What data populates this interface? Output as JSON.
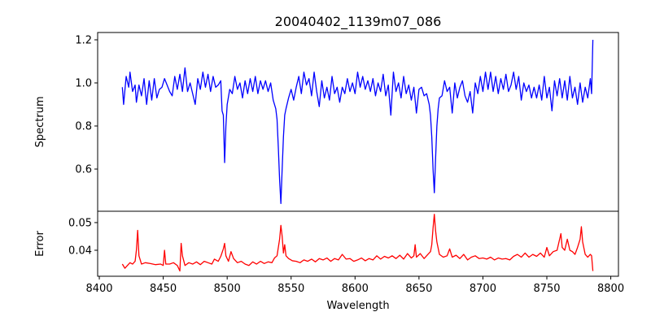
{
  "chart_data": [
    {
      "type": "line",
      "title": "20040402_1139m07_086",
      "xlabel": "",
      "ylabel": "Spectrum",
      "xlim": [
        8398.7,
        8806
      ],
      "ylim": [
        0.404,
        1.234
      ],
      "yticks": [
        "0.6",
        "0.8",
        "1.0",
        "1.2"
      ],
      "yticks_values": [
        0.6,
        0.8,
        1.0,
        1.2
      ],
      "grid": false,
      "color": "#0000ff",
      "points": [
        [
          8418,
          0.98
        ],
        [
          8419,
          0.9
        ],
        [
          8421,
          1.03
        ],
        [
          8423,
          0.98
        ],
        [
          8424,
          1.05
        ],
        [
          8426,
          0.96
        ],
        [
          8428,
          0.99
        ],
        [
          8429,
          0.91
        ],
        [
          8431,
          0.99
        ],
        [
          8433,
          0.94
        ],
        [
          8435,
          1.02
        ],
        [
          8437,
          0.9
        ],
        [
          8439,
          1.01
        ],
        [
          8441,
          0.92
        ],
        [
          8443,
          1.02
        ],
        [
          8445,
          0.93
        ],
        [
          8447,
          0.97
        ],
        [
          8449,
          0.98
        ],
        [
          8451,
          1.02
        ],
        [
          8453,
          0.99
        ],
        [
          8455,
          0.96
        ],
        [
          8457,
          0.94
        ],
        [
          8459,
          1.03
        ],
        [
          8461,
          0.97
        ],
        [
          8463,
          1.04
        ],
        [
          8465,
          0.96
        ],
        [
          8467,
          1.07
        ],
        [
          8469,
          0.96
        ],
        [
          8471,
          1.0
        ],
        [
          8473,
          0.95
        ],
        [
          8475,
          0.9
        ],
        [
          8477,
          1.02
        ],
        [
          8479,
          0.97
        ],
        [
          8481,
          1.05
        ],
        [
          8483,
          0.98
        ],
        [
          8485,
          1.04
        ],
        [
          8487,
          0.96
        ],
        [
          8489,
          1.03
        ],
        [
          8491,
          0.98
        ],
        [
          8493,
          0.99
        ],
        [
          8495,
          1.01
        ],
        [
          8496,
          0.87
        ],
        [
          8497,
          0.85
        ],
        [
          8498,
          0.63
        ],
        [
          8499,
          0.8
        ],
        [
          8500,
          0.9
        ],
        [
          8502,
          0.97
        ],
        [
          8504,
          0.95
        ],
        [
          8506,
          1.03
        ],
        [
          8508,
          0.97
        ],
        [
          8510,
          1.0
        ],
        [
          8512,
          0.93
        ],
        [
          8514,
          1.01
        ],
        [
          8516,
          0.95
        ],
        [
          8518,
          1.02
        ],
        [
          8520,
          0.96
        ],
        [
          8522,
          1.03
        ],
        [
          8524,
          0.95
        ],
        [
          8526,
          1.01
        ],
        [
          8528,
          0.97
        ],
        [
          8530,
          1.01
        ],
        [
          8532,
          0.96
        ],
        [
          8534,
          1.0
        ],
        [
          8536,
          0.92
        ],
        [
          8538,
          0.88
        ],
        [
          8539,
          0.83
        ],
        [
          8540,
          0.7
        ],
        [
          8541,
          0.55
        ],
        [
          8542,
          0.44
        ],
        [
          8543,
          0.6
        ],
        [
          8544,
          0.75
        ],
        [
          8545,
          0.85
        ],
        [
          8546,
          0.88
        ],
        [
          8548,
          0.93
        ],
        [
          8550,
          0.97
        ],
        [
          8552,
          0.92
        ],
        [
          8554,
          0.98
        ],
        [
          8556,
          1.03
        ],
        [
          8558,
          0.95
        ],
        [
          8560,
          1.05
        ],
        [
          8562,
          0.99
        ],
        [
          8564,
          1.02
        ],
        [
          8566,
          0.94
        ],
        [
          8568,
          1.05
        ],
        [
          8570,
          0.96
        ],
        [
          8572,
          0.89
        ],
        [
          8574,
          1.01
        ],
        [
          8576,
          0.93
        ],
        [
          8578,
          0.98
        ],
        [
          8580,
          0.92
        ],
        [
          8582,
          1.03
        ],
        [
          8584,
          0.95
        ],
        [
          8586,
          0.98
        ],
        [
          8588,
          0.91
        ],
        [
          8590,
          0.98
        ],
        [
          8592,
          0.95
        ],
        [
          8594,
          1.02
        ],
        [
          8596,
          0.96
        ],
        [
          8598,
          1.0
        ],
        [
          8600,
          0.95
        ],
        [
          8602,
          1.05
        ],
        [
          8604,
          0.98
        ],
        [
          8606,
          1.03
        ],
        [
          8608,
          0.97
        ],
        [
          8610,
          1.01
        ],
        [
          8612,
          0.96
        ],
        [
          8614,
          1.02
        ],
        [
          8616,
          0.94
        ],
        [
          8618,
          1.0
        ],
        [
          8620,
          0.96
        ],
        [
          8622,
          1.04
        ],
        [
          8624,
          0.94
        ],
        [
          8626,
          0.99
        ],
        [
          8628,
          0.85
        ],
        [
          8630,
          1.05
        ],
        [
          8632,
          0.96
        ],
        [
          8634,
          1.0
        ],
        [
          8636,
          0.93
        ],
        [
          8638,
          1.03
        ],
        [
          8640,
          0.95
        ],
        [
          8642,
          0.99
        ],
        [
          8644,
          0.92
        ],
        [
          8646,
          0.98
        ],
        [
          8648,
          0.86
        ],
        [
          8650,
          0.97
        ],
        [
          8652,
          0.98
        ],
        [
          8654,
          0.94
        ],
        [
          8656,
          0.95
        ],
        [
          8658,
          0.9
        ],
        [
          8659,
          0.85
        ],
        [
          8660,
          0.75
        ],
        [
          8661,
          0.6
        ],
        [
          8662,
          0.49
        ],
        [
          8663,
          0.65
        ],
        [
          8664,
          0.8
        ],
        [
          8665,
          0.88
        ],
        [
          8666,
          0.93
        ],
        [
          8668,
          0.94
        ],
        [
          8670,
          1.01
        ],
        [
          8672,
          0.96
        ],
        [
          8674,
          0.98
        ],
        [
          8676,
          0.86
        ],
        [
          8678,
          1.0
        ],
        [
          8680,
          0.93
        ],
        [
          8682,
          0.98
        ],
        [
          8684,
          1.01
        ],
        [
          8686,
          0.94
        ],
        [
          8688,
          0.91
        ],
        [
          8690,
          0.96
        ],
        [
          8692,
          0.86
        ],
        [
          8694,
          1.0
        ],
        [
          8696,
          0.95
        ],
        [
          8698,
          1.03
        ],
        [
          8700,
          0.96
        ],
        [
          8702,
          1.05
        ],
        [
          8704,
          0.97
        ],
        [
          8706,
          1.05
        ],
        [
          8708,
          0.96
        ],
        [
          8710,
          1.03
        ],
        [
          8712,
          0.95
        ],
        [
          8714,
          1.02
        ],
        [
          8716,
          0.97
        ],
        [
          8718,
          1.04
        ],
        [
          8720,
          0.96
        ],
        [
          8722,
          0.99
        ],
        [
          8724,
          1.05
        ],
        [
          8726,
          0.97
        ],
        [
          8728,
          1.03
        ],
        [
          8730,
          0.92
        ],
        [
          8732,
          1.0
        ],
        [
          8734,
          0.96
        ],
        [
          8736,
          0.99
        ],
        [
          8738,
          0.93
        ],
        [
          8740,
          0.98
        ],
        [
          8742,
          0.93
        ],
        [
          8744,
          0.99
        ],
        [
          8746,
          0.92
        ],
        [
          8748,
          1.03
        ],
        [
          8750,
          0.93
        ],
        [
          8752,
          0.98
        ],
        [
          8754,
          0.87
        ],
        [
          8756,
          1.01
        ],
        [
          8758,
          0.94
        ],
        [
          8760,
          1.02
        ],
        [
          8762,
          0.93
        ],
        [
          8764,
          1.01
        ],
        [
          8766,
          0.92
        ],
        [
          8768,
          1.03
        ],
        [
          8770,
          0.93
        ],
        [
          8772,
          0.98
        ],
        [
          8774,
          0.9
        ],
        [
          8776,
          1.0
        ],
        [
          8778,
          0.91
        ],
        [
          8780,
          0.98
        ],
        [
          8782,
          0.93
        ],
        [
          8784,
          1.02
        ],
        [
          8785,
          0.95
        ],
        [
          8786,
          1.2
        ]
      ]
    },
    {
      "type": "line",
      "title": "",
      "xlabel": "Wavelength",
      "ylabel": "Error",
      "xlim": [
        8398.7,
        8806
      ],
      "ylim": [
        0.0306,
        0.0541
      ],
      "xticks": [
        "8400",
        "8450",
        "8500",
        "8550",
        "8600",
        "8650",
        "8700",
        "8750",
        "8800"
      ],
      "xticks_values": [
        8400,
        8450,
        8500,
        8550,
        8600,
        8650,
        8700,
        8750,
        8800
      ],
      "yticks": [
        "0.04",
        "0.05"
      ],
      "yticks_values": [
        0.04,
        0.05
      ],
      "grid": false,
      "color": "#ff0000",
      "points": [
        [
          8418,
          0.035
        ],
        [
          8420,
          0.0335
        ],
        [
          8422,
          0.0345
        ],
        [
          8424,
          0.0355
        ],
        [
          8426,
          0.035
        ],
        [
          8428,
          0.036
        ],
        [
          8429,
          0.04
        ],
        [
          8430,
          0.0472
        ],
        [
          8431,
          0.038
        ],
        [
          8433,
          0.035
        ],
        [
          8436,
          0.0355
        ],
        [
          8440,
          0.0352
        ],
        [
          8444,
          0.0348
        ],
        [
          8448,
          0.035
        ],
        [
          8450,
          0.0345
        ],
        [
          8451,
          0.04
        ],
        [
          8452,
          0.035
        ],
        [
          8455,
          0.035
        ],
        [
          8458,
          0.0355
        ],
        [
          8461,
          0.0345
        ],
        [
          8463,
          0.0325
        ],
        [
          8464,
          0.0425
        ],
        [
          8465,
          0.038
        ],
        [
          8467,
          0.0345
        ],
        [
          8470,
          0.0355
        ],
        [
          8473,
          0.035
        ],
        [
          8476,
          0.0358
        ],
        [
          8479,
          0.0348
        ],
        [
          8482,
          0.036
        ],
        [
          8485,
          0.0355
        ],
        [
          8488,
          0.035
        ],
        [
          8490,
          0.0368
        ],
        [
          8493,
          0.036
        ],
        [
          8495,
          0.0378
        ],
        [
          8497,
          0.0405
        ],
        [
          8498,
          0.0425
        ],
        [
          8499,
          0.038
        ],
        [
          8501,
          0.036
        ],
        [
          8503,
          0.0395
        ],
        [
          8505,
          0.037
        ],
        [
          8508,
          0.0355
        ],
        [
          8511,
          0.036
        ],
        [
          8514,
          0.035
        ],
        [
          8517,
          0.0345
        ],
        [
          8520,
          0.0358
        ],
        [
          8523,
          0.035
        ],
        [
          8526,
          0.036
        ],
        [
          8529,
          0.0352
        ],
        [
          8532,
          0.0358
        ],
        [
          8535,
          0.0355
        ],
        [
          8537,
          0.0372
        ],
        [
          8539,
          0.038
        ],
        [
          8541,
          0.044
        ],
        [
          8542,
          0.049
        ],
        [
          8543,
          0.045
        ],
        [
          8544,
          0.039
        ],
        [
          8545,
          0.042
        ],
        [
          8546,
          0.038
        ],
        [
          8548,
          0.037
        ],
        [
          8551,
          0.0362
        ],
        [
          8554,
          0.036
        ],
        [
          8557,
          0.0355
        ],
        [
          8560,
          0.0365
        ],
        [
          8563,
          0.036
        ],
        [
          8566,
          0.0368
        ],
        [
          8569,
          0.0358
        ],
        [
          8572,
          0.037
        ],
        [
          8575,
          0.0365
        ],
        [
          8578,
          0.0372
        ],
        [
          8581,
          0.036
        ],
        [
          8584,
          0.037
        ],
        [
          8587,
          0.0365
        ],
        [
          8590,
          0.0385
        ],
        [
          8593,
          0.0368
        ],
        [
          8596,
          0.037
        ],
        [
          8599,
          0.036
        ],
        [
          8602,
          0.0365
        ],
        [
          8605,
          0.0372
        ],
        [
          8608,
          0.0362
        ],
        [
          8611,
          0.037
        ],
        [
          8614,
          0.0365
        ],
        [
          8617,
          0.038
        ],
        [
          8620,
          0.0368
        ],
        [
          8623,
          0.0378
        ],
        [
          8626,
          0.0372
        ],
        [
          8629,
          0.038
        ],
        [
          8632,
          0.037
        ],
        [
          8635,
          0.0382
        ],
        [
          8638,
          0.0368
        ],
        [
          8641,
          0.0388
        ],
        [
          8644,
          0.0372
        ],
        [
          8646,
          0.038
        ],
        [
          8647,
          0.042
        ],
        [
          8648,
          0.0375
        ],
        [
          8651,
          0.0388
        ],
        [
          8654,
          0.037
        ],
        [
          8657,
          0.0385
        ],
        [
          8659,
          0.0395
        ],
        [
          8660,
          0.042
        ],
        [
          8661,
          0.048
        ],
        [
          8662,
          0.053
        ],
        [
          8663,
          0.047
        ],
        [
          8664,
          0.043
        ],
        [
          8666,
          0.0385
        ],
        [
          8669,
          0.0375
        ],
        [
          8672,
          0.038
        ],
        [
          8674,
          0.0405
        ],
        [
          8676,
          0.0375
        ],
        [
          8679,
          0.0382
        ],
        [
          8682,
          0.037
        ],
        [
          8685,
          0.0385
        ],
        [
          8688,
          0.0365
        ],
        [
          8691,
          0.0375
        ],
        [
          8694,
          0.038
        ],
        [
          8697,
          0.037
        ],
        [
          8700,
          0.0372
        ],
        [
          8703,
          0.0368
        ],
        [
          8706,
          0.0375
        ],
        [
          8709,
          0.0365
        ],
        [
          8712,
          0.0372
        ],
        [
          8715,
          0.0368
        ],
        [
          8718,
          0.037
        ],
        [
          8721,
          0.0365
        ],
        [
          8724,
          0.0378
        ],
        [
          8727,
          0.0385
        ],
        [
          8730,
          0.0375
        ],
        [
          8733,
          0.039
        ],
        [
          8736,
          0.0375
        ],
        [
          8739,
          0.0385
        ],
        [
          8742,
          0.0378
        ],
        [
          8745,
          0.039
        ],
        [
          8748,
          0.0375
        ],
        [
          8750,
          0.041
        ],
        [
          8752,
          0.038
        ],
        [
          8755,
          0.0395
        ],
        [
          8758,
          0.04
        ],
        [
          8760,
          0.044
        ],
        [
          8761,
          0.046
        ],
        [
          8762,
          0.041
        ],
        [
          8764,
          0.04
        ],
        [
          8766,
          0.044
        ],
        [
          8768,
          0.04
        ],
        [
          8770,
          0.0395
        ],
        [
          8772,
          0.0385
        ],
        [
          8774,
          0.041
        ],
        [
          8776,
          0.044
        ],
        [
          8777,
          0.0485
        ],
        [
          8778,
          0.043
        ],
        [
          8780,
          0.0385
        ],
        [
          8782,
          0.0375
        ],
        [
          8784,
          0.0385
        ],
        [
          8785,
          0.038
        ],
        [
          8786,
          0.0325
        ]
      ]
    }
  ]
}
